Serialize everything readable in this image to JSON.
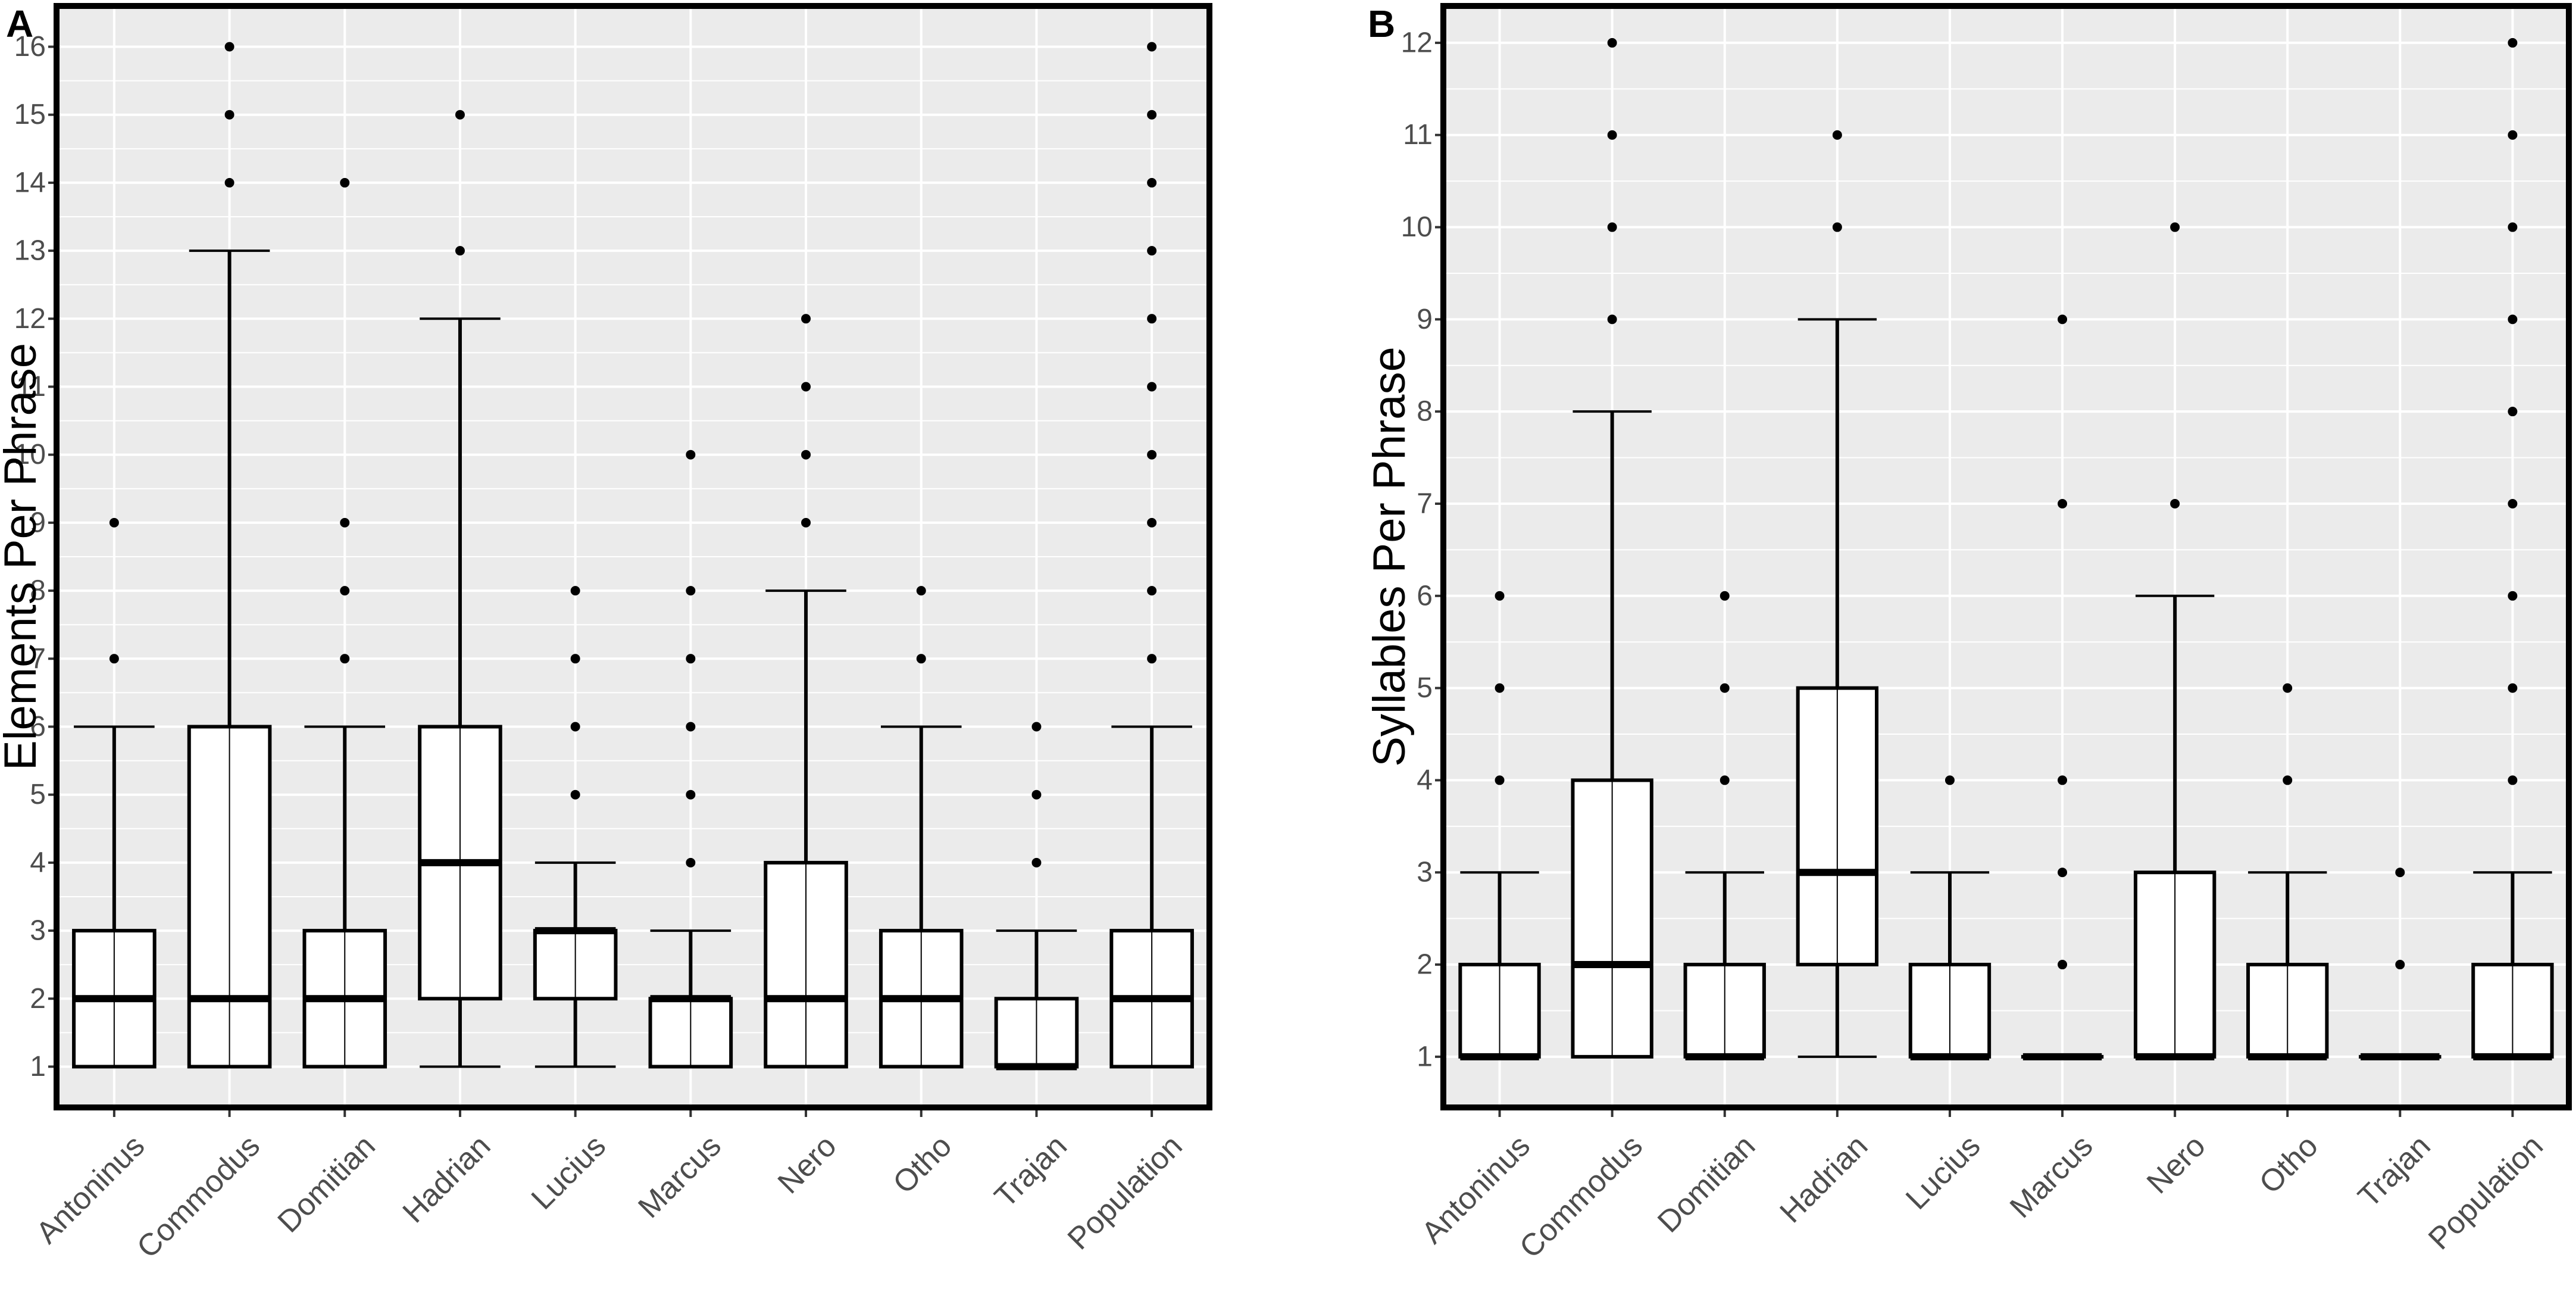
{
  "chart_data": [
    {
      "type": "box",
      "panel": "A",
      "ylabel": "Elements Per Phrase",
      "xlabel": "",
      "ylim": [
        0.4,
        16.6
      ],
      "yticks": [
        1,
        2,
        3,
        4,
        5,
        6,
        7,
        8,
        9,
        10,
        11,
        12,
        13,
        14,
        15,
        16
      ],
      "categories": [
        "Antoninus",
        "Commodus",
        "Domitian",
        "Hadrian",
        "Lucius",
        "Marcus",
        "Nero",
        "Otho",
        "Trajan",
        "Population"
      ],
      "boxes": [
        {
          "category": "Antoninus",
          "lower": 1,
          "q1": 1,
          "median": 2,
          "q3": 3,
          "upper": 6,
          "outliers": [
            7,
            9
          ]
        },
        {
          "category": "Commodus",
          "lower": 1,
          "q1": 1,
          "median": 2,
          "q3": 6,
          "upper": 13,
          "outliers": [
            14,
            15,
            16
          ]
        },
        {
          "category": "Domitian",
          "lower": 1,
          "q1": 1,
          "median": 2,
          "q3": 3,
          "upper": 6,
          "outliers": [
            7,
            8,
            9,
            14
          ]
        },
        {
          "category": "Hadrian",
          "lower": 1,
          "q1": 2,
          "median": 4,
          "q3": 6,
          "upper": 12,
          "outliers": [
            13,
            15
          ]
        },
        {
          "category": "Lucius",
          "lower": 1,
          "q1": 2,
          "median": 3,
          "q3": 3,
          "upper": 4,
          "outliers": [
            5,
            6,
            7,
            8
          ]
        },
        {
          "category": "Marcus",
          "lower": 1,
          "q1": 1,
          "median": 2,
          "q3": 2,
          "upper": 3,
          "outliers": [
            4,
            5,
            6,
            7,
            8,
            10
          ]
        },
        {
          "category": "Nero",
          "lower": 1,
          "q1": 1,
          "median": 2,
          "q3": 4,
          "upper": 8,
          "outliers": [
            9,
            10,
            11,
            12
          ]
        },
        {
          "category": "Otho",
          "lower": 1,
          "q1": 1,
          "median": 2,
          "q3": 3,
          "upper": 6,
          "outliers": [
            7,
            8
          ]
        },
        {
          "category": "Trajan",
          "lower": 1,
          "q1": 1,
          "median": 1,
          "q3": 2,
          "upper": 3,
          "outliers": [
            4,
            5,
            6
          ]
        },
        {
          "category": "Population",
          "lower": 1,
          "q1": 1,
          "median": 2,
          "q3": 3,
          "upper": 6,
          "outliers": [
            7,
            8,
            9,
            10,
            11,
            12,
            13,
            14,
            15,
            16
          ]
        }
      ]
    },
    {
      "type": "box",
      "panel": "B",
      "ylabel": "Syllables Per Phrase",
      "xlabel": "",
      "ylim": [
        0.45,
        12.4
      ],
      "yticks": [
        1,
        2,
        3,
        4,
        5,
        6,
        7,
        8,
        9,
        10,
        11,
        12
      ],
      "categories": [
        "Antoninus",
        "Commodus",
        "Domitian",
        "Hadrian",
        "Lucius",
        "Marcus",
        "Nero",
        "Otho",
        "Trajan",
        "Population"
      ],
      "boxes": [
        {
          "category": "Antoninus",
          "lower": 1,
          "q1": 1,
          "median": 1,
          "q3": 2,
          "upper": 3,
          "outliers": [
            4,
            5,
            6
          ]
        },
        {
          "category": "Commodus",
          "lower": 1,
          "q1": 1,
          "median": 2,
          "q3": 4,
          "upper": 8,
          "outliers": [
            9,
            10,
            11,
            12
          ]
        },
        {
          "category": "Domitian",
          "lower": 1,
          "q1": 1,
          "median": 1,
          "q3": 2,
          "upper": 3,
          "outliers": [
            4,
            5,
            6
          ]
        },
        {
          "category": "Hadrian",
          "lower": 1,
          "q1": 2,
          "median": 3,
          "q3": 5,
          "upper": 9,
          "outliers": [
            10,
            11
          ]
        },
        {
          "category": "Lucius",
          "lower": 1,
          "q1": 1,
          "median": 1,
          "q3": 2,
          "upper": 3,
          "outliers": [
            4
          ]
        },
        {
          "category": "Marcus",
          "lower": 1,
          "q1": 1,
          "median": 1,
          "q3": 1,
          "upper": 1,
          "outliers": [
            2,
            3,
            4,
            7,
            9
          ]
        },
        {
          "category": "Nero",
          "lower": 1,
          "q1": 1,
          "median": 1,
          "q3": 3,
          "upper": 6,
          "outliers": [
            7,
            10
          ]
        },
        {
          "category": "Otho",
          "lower": 1,
          "q1": 1,
          "median": 1,
          "q3": 2,
          "upper": 3,
          "outliers": [
            4,
            5
          ]
        },
        {
          "category": "Trajan",
          "lower": 1,
          "q1": 1,
          "median": 1,
          "q3": 1,
          "upper": 1,
          "outliers": [
            2,
            3
          ]
        },
        {
          "category": "Population",
          "lower": 1,
          "q1": 1,
          "median": 1,
          "q3": 2,
          "upper": 3,
          "outliers": [
            4,
            5,
            6,
            7,
            8,
            9,
            10,
            11,
            12
          ]
        }
      ]
    }
  ],
  "style": {
    "panel_background": "#ebebeb",
    "grid_color": "#ffffff",
    "box_fill": "#ffffff",
    "line_color": "#000000",
    "tick_text_color": "#4d4d4d"
  }
}
